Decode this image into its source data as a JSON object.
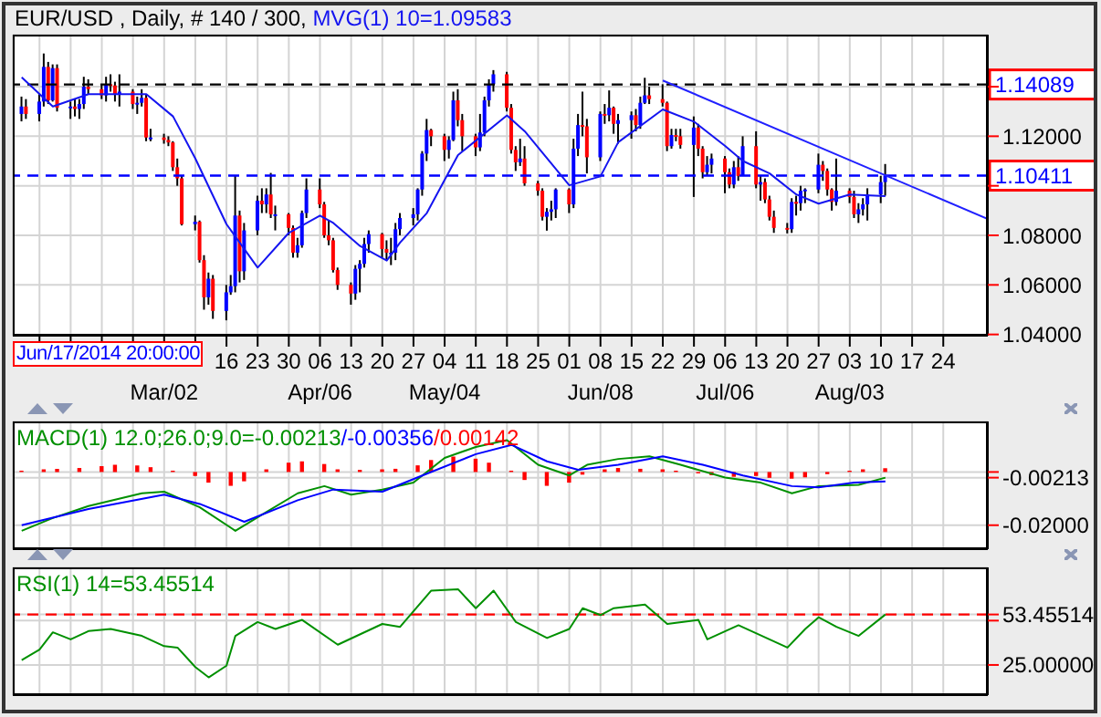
{
  "chart_data": [
    {
      "type": "candlestick",
      "title": "EUR/USD , Daily, # 140 / 300,",
      "color": "#000000",
      "colors": [
        "#0000ff",
        "#ff0000",
        "#0000ff",
        "#0000ff",
        "#ff0000",
        "#0000ff",
        "#ff0000",
        "#0000ff",
        "#ff0000",
        "#0000ff",
        "#0000ff",
        "#ff0000",
        "#ff0000",
        "#0000ff",
        "#ff0000",
        "#ff0000",
        "#0000ff",
        "#ff0000",
        "#0000ff",
        "#0000ff",
        "#ff0000",
        "#0000ff",
        "#ff0000",
        "#ff0000",
        "#ff0000",
        "#ff0000",
        "#ff0000",
        "#0000ff",
        "#ff0000",
        "#ff0000",
        "#0000ff",
        "#ff0000",
        "#0000ff",
        "#0000ff",
        "#0000ff",
        "#ff0000",
        "#0000ff",
        "#0000ff",
        "#ff0000",
        "#0000ff",
        "#ff0000",
        "#0000ff",
        "#ff0000",
        "#ff0000",
        "#0000ff",
        "#0000ff",
        "#0000ff",
        "#ff0000",
        "#ff0000",
        "#ff0000",
        "#ff0000",
        "#ff0000",
        "#ff0000",
        "#0000ff",
        "#0000ff",
        "#0000ff",
        "#0000ff",
        "#ff0000",
        "#ff0000",
        "#0000ff",
        "#0000ff",
        "#0000ff",
        "#0000ff",
        "#0000ff",
        "#0000ff",
        "#0000ff",
        "#ff0000",
        "#ff0000",
        "#0000ff",
        "#0000ff",
        "#ff0000",
        "#ff0000",
        "#ff0000",
        "#0000ff",
        "#0000ff",
        "#0000ff",
        "#0000ff",
        "#ff0000",
        "#ff0000",
        "#ff0000",
        "#0000ff",
        "#ff0000",
        "#ff0000",
        "#ff0000",
        "#0000ff",
        "#0000ff",
        "#0000ff",
        "#ff0000",
        "#0000ff",
        "#0000ff",
        "#ff0000",
        "#ff0000",
        "#0000ff",
        "#ff0000",
        "#0000ff",
        "#ff0000",
        "#0000ff",
        "#0000ff",
        "#ff0000",
        "#0000ff",
        "#0000ff",
        "#ff0000",
        "#ff0000",
        "#ff0000",
        "#0000ff",
        "#ff0000",
        "#ff0000",
        "#0000ff",
        "#ff0000",
        "#ff0000",
        "#0000ff",
        "#0000ff",
        "#ff0000",
        "#ff0000",
        "#0000ff",
        "#ff0000",
        "#0000ff",
        "#ff0000",
        "#0000ff",
        "#ff0000",
        "#ff0000",
        "#ff0000",
        "#ff0000",
        "#0000ff",
        "#ff0000",
        "#0000ff",
        "#0000ff",
        "#0000ff",
        "#ff0000",
        "#ff0000",
        "#ff0000",
        "#0000ff",
        "#ff0000",
        "#ff0000",
        "#0000ff",
        "#0000ff",
        "#0000ff",
        "#0000ff",
        "#0000ff"
      ],
      "x": [
        "--01-29",
        "--01-30",
        "--02-02",
        "--02-03",
        "--02-04",
        "--02-05",
        "--02-06",
        "--02-09",
        "--02-10",
        "--02-11",
        "--02-12",
        "--02-13",
        "--02-16",
        "--02-17",
        "--02-18",
        "--02-19",
        "--02-20",
        "--02-23",
        "--02-24",
        "--02-25",
        "--02-26",
        "--02-27",
        "--03-02",
        "--03-03",
        "--03-04",
        "--03-05",
        "--03-06",
        "--03-09",
        "--03-10",
        "--03-11",
        "--03-12",
        "--03-13",
        "--03-16",
        "--03-17",
        "--03-18",
        "--03-19",
        "--03-20",
        "--03-23",
        "--03-24",
        "--03-25",
        "--03-26",
        "--03-27",
        "--03-30",
        "--03-31",
        "--04-01",
        "--04-02",
        "--04-03",
        "--04-06",
        "--04-07",
        "--04-08",
        "--04-09",
        "--04-10",
        "--04-13",
        "--04-14",
        "--04-15",
        "--04-16",
        "--04-17",
        "--04-20",
        "--04-21",
        "--04-22",
        "--04-23",
        "--04-24",
        "--04-27",
        "--04-28",
        "--04-29",
        "--04-30",
        "--05-01",
        "--05-04",
        "--05-05",
        "--05-06",
        "--05-07",
        "--05-08",
        "--05-11",
        "--05-12",
        "--05-13",
        "--05-14",
        "--05-15",
        "--05-18",
        "--05-19",
        "--05-20",
        "--05-21",
        "--05-22",
        "--05-25",
        "--05-26",
        "--05-27",
        "--05-28",
        "--05-29",
        "--06-01",
        "--06-02",
        "--06-03",
        "--06-04",
        "--06-05",
        "--06-08",
        "--06-09",
        "--06-10",
        "--06-11",
        "--06-12",
        "--06-15",
        "--06-16",
        "--06-17",
        "--06-18",
        "--06-19",
        "--06-22",
        "--06-23",
        "--06-24",
        "--06-25",
        "--06-26",
        "--06-29",
        "--06-30",
        "--07-01",
        "--07-02",
        "--07-03",
        "--07-06",
        "--07-07",
        "--07-08",
        "--07-09",
        "--07-10",
        "--07-13",
        "--07-14",
        "--07-15",
        "--07-16",
        "--07-17",
        "--07-20",
        "--07-21",
        "--07-22",
        "--07-23",
        "--07-24",
        "--07-27",
        "--07-28",
        "--07-29",
        "--07-30",
        "--07-31",
        "--08-03",
        "--08-04",
        "--08-05",
        "--08-06",
        "--08-07",
        "--08-10",
        "--08-11"
      ],
      "ohlc": [
        [
          1.129,
          1.136,
          1.126,
          1.132
        ],
        [
          1.132,
          1.135,
          1.127,
          1.129
        ],
        [
          1.129,
          1.137,
          1.126,
          1.134
        ],
        [
          1.134,
          1.1534,
          1.132,
          1.148
        ],
        [
          1.148,
          1.15,
          1.133,
          1.1345
        ],
        [
          1.1345,
          1.149,
          1.134,
          1.1475
        ],
        [
          1.1475,
          1.149,
          1.13,
          1.1315
        ],
        [
          1.1315,
          1.134,
          1.127,
          1.132
        ],
        [
          1.132,
          1.135,
          1.128,
          1.131
        ],
        [
          1.131,
          1.135,
          1.127,
          1.133
        ],
        [
          1.133,
          1.144,
          1.131,
          1.14
        ],
        [
          1.14,
          1.143,
          1.137,
          1.139
        ],
        [
          1.139,
          1.141,
          1.135,
          1.1365
        ],
        [
          1.1365,
          1.144,
          1.134,
          1.141
        ],
        [
          1.141,
          1.145,
          1.138,
          1.1405
        ],
        [
          1.1405,
          1.142,
          1.134,
          1.137
        ],
        [
          1.137,
          1.145,
          1.132,
          1.138
        ],
        [
          1.138,
          1.139,
          1.131,
          1.133
        ],
        [
          1.133,
          1.136,
          1.129,
          1.1335
        ],
        [
          1.1335,
          1.139,
          1.132,
          1.1355
        ],
        [
          1.1355,
          1.137,
          1.118,
          1.1195
        ],
        [
          1.1195,
          1.123,
          1.118,
          1.1195
        ],
        [
          1.1195,
          1.121,
          1.117,
          1.1185
        ],
        [
          1.1185,
          1.12,
          1.116,
          1.1175
        ],
        [
          1.1175,
          1.118,
          1.106,
          1.1075
        ],
        [
          1.1075,
          1.111,
          1.1,
          1.103
        ],
        [
          1.103,
          1.104,
          1.084,
          1.0845
        ],
        [
          1.0845,
          1.088,
          1.082,
          1.0855
        ],
        [
          1.0855,
          1.086,
          1.069,
          1.07
        ],
        [
          1.07,
          1.072,
          1.05,
          1.055
        ],
        [
          1.055,
          1.065,
          1.052,
          1.0625
        ],
        [
          1.0625,
          1.064,
          1.0463,
          1.0495
        ],
        [
          1.0495,
          1.06,
          1.0457,
          1.057
        ],
        [
          1.057,
          1.064,
          1.056,
          1.0595
        ],
        [
          1.0595,
          1.1043,
          1.057,
          1.088
        ],
        [
          1.088,
          1.09,
          1.061,
          1.0655
        ],
        [
          1.0655,
          1.085,
          1.062,
          1.082
        ],
        [
          1.082,
          1.096,
          1.08,
          1.094
        ],
        [
          1.094,
          1.099,
          1.089,
          1.0925
        ],
        [
          1.0925,
          1.099,
          1.089,
          1.0965
        ],
        [
          1.0965,
          1.1052,
          1.087,
          1.0885
        ],
        [
          1.0885,
          1.092,
          1.082,
          1.0885
        ],
        [
          1.0885,
          1.089,
          1.08,
          1.083
        ],
        [
          1.083,
          1.084,
          1.071,
          1.073
        ],
        [
          1.073,
          1.079,
          1.071,
          1.076
        ],
        [
          1.076,
          1.09,
          1.075,
          1.089
        ],
        [
          1.089,
          1.103,
          1.087,
          1.0985
        ],
        [
          1.0985,
          1.103,
          1.091,
          1.0925
        ],
        [
          1.0925,
          1.0935,
          1.079,
          1.08
        ],
        [
          1.08,
          1.086,
          1.076,
          1.078
        ],
        [
          1.078,
          1.079,
          1.065,
          1.066
        ],
        [
          1.066,
          1.067,
          1.058,
          1.06
        ],
        [
          1.06,
          1.061,
          1.052,
          1.0565
        ],
        [
          1.0565,
          1.068,
          1.054,
          1.0665
        ],
        [
          1.0665,
          1.07,
          1.057,
          1.0685
        ],
        [
          1.0685,
          1.079,
          1.067,
          1.0765
        ],
        [
          1.0765,
          1.082,
          1.073,
          1.0805
        ],
        [
          1.0805,
          1.081,
          1.071,
          1.0745
        ],
        [
          1.0745,
          1.078,
          1.07,
          1.073
        ],
        [
          1.073,
          1.079,
          1.068,
          1.073
        ],
        [
          1.073,
          1.085,
          1.07,
          1.0825
        ],
        [
          1.0825,
          1.089,
          1.08,
          1.087
        ],
        [
          1.087,
          1.091,
          1.084,
          1.0885
        ],
        [
          1.0885,
          1.099,
          1.086,
          1.0985
        ],
        [
          1.0985,
          1.114,
          1.096,
          1.113
        ],
        [
          1.113,
          1.127,
          1.11,
          1.1225
        ],
        [
          1.1225,
          1.123,
          1.116,
          1.12
        ],
        [
          1.12,
          1.121,
          1.11,
          1.1145
        ],
        [
          1.1145,
          1.12,
          1.111,
          1.1185
        ],
        [
          1.1185,
          1.138,
          1.118,
          1.1345
        ],
        [
          1.1345,
          1.139,
          1.124,
          1.1265
        ],
        [
          1.1265,
          1.129,
          1.114,
          1.12
        ],
        [
          1.12,
          1.121,
          1.112,
          1.1155
        ],
        [
          1.1155,
          1.129,
          1.114,
          1.1215
        ],
        [
          1.1215,
          1.136,
          1.12,
          1.1345
        ],
        [
          1.1345,
          1.143,
          1.132,
          1.141
        ],
        [
          1.141,
          1.1467,
          1.138,
          1.145
        ],
        [
          1.145,
          1.146,
          1.13,
          1.1315
        ],
        [
          1.1315,
          1.133,
          1.113,
          1.1145
        ],
        [
          1.1145,
          1.116,
          1.106,
          1.1095
        ],
        [
          1.1095,
          1.119,
          1.108,
          1.111
        ],
        [
          1.111,
          1.116,
          1.1,
          1.101
        ],
        [
          1.101,
          1.102,
          1.096,
          1.098
        ],
        [
          1.098,
          1.099,
          1.086,
          1.0875
        ],
        [
          1.0875,
          1.091,
          1.0819,
          1.0895
        ],
        [
          1.0895,
          1.094,
          1.086,
          1.0905
        ],
        [
          1.0905,
          1.099,
          1.087,
          1.0985
        ],
        [
          1.0985,
          1.099,
          1.089,
          1.0925
        ],
        [
          1.0925,
          1.119,
          1.091,
          1.115
        ],
        [
          1.115,
          1.129,
          1.112,
          1.1245
        ],
        [
          1.1245,
          1.138,
          1.12,
          1.124
        ],
        [
          1.124,
          1.127,
          1.105,
          1.1115
        ],
        [
          1.1115,
          1.13,
          1.11,
          1.129
        ],
        [
          1.129,
          1.133,
          1.125,
          1.1285
        ],
        [
          1.1285,
          1.1385,
          1.126,
          1.1315
        ],
        [
          1.1315,
          1.132,
          1.121,
          1.125
        ],
        [
          1.125,
          1.129,
          1.117,
          1.1265
        ],
        [
          1.1265,
          1.13,
          1.119,
          1.1285
        ],
        [
          1.1285,
          1.131,
          1.122,
          1.1245
        ],
        [
          1.1245,
          1.136,
          1.123,
          1.1335
        ],
        [
          1.1335,
          1.1436,
          1.133,
          1.1365
        ],
        [
          1.1365,
          1.14,
          1.133,
          1.135
        ],
        [
          1.135,
          1.141,
          1.132,
          1.1335
        ],
        [
          1.1335,
          1.134,
          1.114,
          1.116
        ],
        [
          1.116,
          1.123,
          1.115,
          1.1205
        ],
        [
          1.1205,
          1.123,
          1.118,
          1.12
        ],
        [
          1.12,
          1.123,
          1.115,
          1.1165
        ],
        [
          1.1165,
          1.128,
          1.0955,
          1.1235
        ],
        [
          1.1235,
          1.125,
          1.112,
          1.115
        ],
        [
          1.115,
          1.116,
          1.103,
          1.1055
        ],
        [
          1.1055,
          1.112,
          1.104,
          1.1085
        ],
        [
          1.1085,
          1.113,
          1.105,
          1.111
        ],
        [
          1.111,
          1.112,
          1.097,
          1.1055
        ],
        [
          1.1055,
          1.107,
          1.099,
          1.1005
        ],
        [
          1.1005,
          1.11,
          1.099,
          1.1075
        ],
        [
          1.1075,
          1.112,
          1.102,
          1.104
        ],
        [
          1.104,
          1.12,
          1.104,
          1.116
        ],
        [
          1.116,
          1.122,
          1.099,
          1.1005
        ],
        [
          1.1005,
          1.104,
          1.094,
          1.1015
        ],
        [
          1.1015,
          1.103,
          1.093,
          1.0945
        ],
        [
          1.0945,
          1.096,
          1.086,
          1.0875
        ],
        [
          1.0875,
          1.09,
          1.081,
          1.083
        ],
        [
          1.083,
          1.085,
          1.0808,
          1.0825
        ],
        [
          1.0825,
          1.095,
          1.081,
          1.0935
        ],
        [
          1.0935,
          1.096,
          1.088,
          1.093
        ],
        [
          1.093,
          1.1,
          1.09,
          1.098
        ],
        [
          1.098,
          1.099,
          1.093,
          1.0985
        ],
        [
          1.0985,
          1.113,
          1.097,
          1.1085
        ],
        [
          1.1085,
          1.11,
          1.102,
          1.106
        ],
        [
          1.106,
          1.107,
          1.096,
          1.0985
        ],
        [
          1.0985,
          1.099,
          1.09,
          1.0935
        ],
        [
          1.0935,
          1.111,
          1.092,
          1.098
        ],
        [
          1.098,
          1.099,
          1.093,
          1.0955
        ],
        [
          1.0955,
          1.098,
          1.087,
          1.0885
        ],
        [
          1.0885,
          1.093,
          1.085,
          1.0905
        ],
        [
          1.0905,
          1.095,
          1.088,
          1.0925
        ],
        [
          1.0925,
          1.099,
          1.086,
          1.0965
        ],
        [
          1.0965,
          1.104,
          1.093,
          1.1015
        ],
        [
          1.1015,
          1.1088,
          1.096,
          1.10411
        ]
      ],
      "series": [
        {
          "type": "line",
          "name": "MVG(1) 10=1.09583",
          "color": "#1414f0",
          "x": [
            "--01-29",
            "--02-05",
            "--02-13",
            "--02-26",
            "--03-04",
            "--03-09",
            "--03-16",
            "--03-23",
            "--03-30",
            "--04-06",
            "--04-09",
            "--04-15",
            "--04-21",
            "--04-24",
            "--04-30",
            "--05-07",
            "--05-18",
            "--05-22",
            "--06-01",
            "--06-08",
            "--06-12",
            "--06-22",
            "--06-29",
            "--07-06",
            "--07-10",
            "--07-16",
            "--07-22",
            "--07-27",
            "--08-03",
            "--08-11"
          ],
          "values": [
            1.1438,
            1.132,
            1.137,
            1.137,
            1.128,
            1.111,
            1.0845,
            1.067,
            1.081,
            1.088,
            1.085,
            1.0757,
            1.0698,
            1.0771,
            1.089,
            1.1124,
            1.1284,
            1.122,
            1.1002,
            1.1038,
            1.1176,
            1.1308,
            1.1259,
            1.1161,
            1.11,
            1.105,
            1.0965,
            1.0928,
            1.0965,
            1.09583
          ]
        },
        {
          "type": "line",
          "color": "#2020ff",
          "x": [
            "--06-22",
            "--09-03"
          ],
          "values": [
            1.1425,
            1.0866
          ]
        }
      ],
      "ref_lines": [
        {
          "axis": "y",
          "value": 1.14089,
          "label": "1.14089",
          "color": "#000000",
          "line_style": "dashed"
        },
        {
          "axis": "y",
          "value": 1.10411,
          "label": "1.10411",
          "color": "#0000ff",
          "line_style": "dashed"
        }
      ],
      "annotations": [
        "Jun/17/2014 20:00:00"
      ],
      "xlim": [
        "--01-27",
        "--09-03"
      ],
      "ylim": [
        1.0395,
        1.161
      ],
      "xticks": [
        {
          "value": "--02-02",
          "label": null
        },
        {
          "value": "--02-09",
          "label": null
        },
        {
          "value": "--02-16",
          "label": null
        },
        {
          "value": "--02-23",
          "label": null
        },
        {
          "value": "--03-02",
          "label": null
        },
        {
          "value": "--03-09",
          "label": null
        },
        {
          "value": "--03-16",
          "label": "16"
        },
        {
          "value": "--03-23",
          "label": "23"
        },
        {
          "value": "--03-30",
          "label": "30"
        },
        {
          "value": "--04-06",
          "label": "06"
        },
        {
          "value": "--04-13",
          "label": "13"
        },
        {
          "value": "--04-20",
          "label": "20"
        },
        {
          "value": "--04-27",
          "label": "27"
        },
        {
          "value": "--05-04",
          "label": "04"
        },
        {
          "value": "--05-11",
          "label": "11"
        },
        {
          "value": "--05-18",
          "label": "18"
        },
        {
          "value": "--05-25",
          "label": "25"
        },
        {
          "value": "--06-01",
          "label": "01"
        },
        {
          "value": "--06-08",
          "label": "08"
        },
        {
          "value": "--06-15",
          "label": "15"
        },
        {
          "value": "--06-22",
          "label": "22"
        },
        {
          "value": "--06-29",
          "label": "29"
        },
        {
          "value": "--07-06",
          "label": "06"
        },
        {
          "value": "--07-13",
          "label": "13"
        },
        {
          "value": "--07-20",
          "label": "20"
        },
        {
          "value": "--07-27",
          "label": "27"
        },
        {
          "value": "--08-03",
          "label": "03"
        },
        {
          "value": "--08-10",
          "label": "10"
        },
        {
          "value": "--08-17",
          "label": "17"
        },
        {
          "value": "--08-24",
          "label": "24"
        }
      ],
      "x2lim": [
        "--01-27",
        "--09-03"
      ],
      "x2ticks": [
        {
          "value": "--03-02",
          "label": "Mar/02"
        },
        {
          "value": "--04-06",
          "label": "Apr/06"
        },
        {
          "value": "--05-04",
          "label": "May/04"
        },
        {
          "value": "--06-08",
          "label": "Jun/08"
        },
        {
          "value": "--07-06",
          "label": "Jul/06"
        },
        {
          "value": "--08-03",
          "label": "Aug/03"
        }
      ],
      "yticks": [
        {
          "value": 1.04,
          "label": "1.04000"
        },
        {
          "value": 1.06,
          "label": "1.06000"
        },
        {
          "value": 1.08,
          "label": "1.08000"
        },
        {
          "value": 1.1,
          "label": null
        },
        {
          "value": 1.12,
          "label": "1.12000"
        },
        {
          "value": 1.14,
          "label": null
        }
      ],
      "grid": true
    },
    {
      "type": "line",
      "series": [
        {
          "type": "line",
          "name": "MACD(1) 12.0;26.0;9.0=-0.00213",
          "color": "#009000",
          "x": [
            "--01-29",
            "--02-05",
            "--02-13",
            "--02-25",
            "--03-02",
            "--03-10",
            "--03-18",
            "--03-24",
            "--04-01",
            "--04-07",
            "--04-13",
            "--04-20",
            "--04-27",
            "--05-04",
            "--05-11",
            "--05-18",
            "--05-25",
            "--06-01",
            "--06-05",
            "--06-12",
            "--06-19",
            "--06-26",
            "--07-06",
            "--07-14",
            "--07-21",
            "--07-27",
            "--08-05",
            "--08-11"
          ],
          "values": [
            -0.0221,
            -0.0173,
            -0.0128,
            -0.008,
            -0.0074,
            -0.0133,
            -0.0221,
            -0.016,
            -0.008,
            -0.0053,
            -0.0085,
            -0.0066,
            -0.004,
            0.0053,
            0.0094,
            0.012,
            0.0027,
            -0.0013,
            0.0027,
            0.0049,
            0.0059,
            0.0027,
            -0.0021,
            -0.004,
            -0.008,
            -0.0053,
            -0.0048,
            -0.00213
          ]
        },
        {
          "type": "line",
          "name": "/-0.00356",
          "color": "#0000ff",
          "x": [
            "--01-29",
            "--02-13",
            "--03-02",
            "--03-10",
            "--03-20",
            "--04-01",
            "--04-09",
            "--04-20",
            "--04-29",
            "--05-11",
            "--05-19",
            "--05-27",
            "--06-03",
            "--06-12",
            "--06-22",
            "--07-01",
            "--07-10",
            "--07-21",
            "--07-27",
            "--08-04",
            "--08-11"
          ],
          "values": [
            -0.02,
            -0.0139,
            -0.0085,
            -0.012,
            -0.0187,
            -0.0106,
            -0.0066,
            -0.0074,
            -0.0013,
            0.0067,
            0.0102,
            0.004,
            0.0008,
            0.0027,
            0.0059,
            0.0027,
            -0.0013,
            -0.0053,
            -0.0058,
            -0.004,
            -0.00356
          ]
        },
        {
          "type": "bar",
          "name": "/0.00142",
          "color": "#ff0000",
          "x": [
            "--01-29",
            "--02-03",
            "--02-06",
            "--02-11",
            "--02-16",
            "--02-19",
            "--02-24",
            "--02-27",
            "--03-04",
            "--03-09",
            "--03-12",
            "--03-17",
            "--03-20",
            "--03-25",
            "--03-30",
            "--04-02",
            "--04-07",
            "--04-10",
            "--04-15",
            "--04-20",
            "--04-23",
            "--04-28",
            "--05-01",
            "--05-06",
            "--05-11",
            "--05-14",
            "--05-19",
            "--05-22",
            "--05-27",
            "--06-01",
            "--06-04",
            "--06-09",
            "--06-12",
            "--06-17",
            "--06-22",
            "--06-25",
            "--06-30",
            "--07-03",
            "--07-08",
            "--07-13",
            "--07-16",
            "--07-21",
            "--07-24",
            "--07-29",
            "--08-03",
            "--08-06",
            "--08-11"
          ],
          "values": [
            0.0005,
            0.001,
            0.0012,
            0.0015,
            0.0022,
            0.0027,
            0.0025,
            0.0018,
            0.0005,
            -0.0015,
            -0.004,
            -0.0052,
            -0.0035,
            0.001,
            0.0035,
            0.004,
            0.003,
            0.001,
            0.0008,
            0.001,
            0.0012,
            0.0025,
            0.0045,
            0.0058,
            0.005,
            0.0035,
            0.0005,
            -0.003,
            -0.0052,
            -0.004,
            -0.001,
            0.001,
            0.0015,
            0.0012,
            0.001,
            0.0005,
            -0.0005,
            -0.0012,
            -0.0018,
            -0.0015,
            -0.0022,
            -0.0025,
            -0.002,
            -0.0008,
            0.0005,
            0.001,
            0.00142
          ]
        }
      ],
      "xlim": [
        "--01-27",
        "--09-03"
      ],
      "ylim": [
        -0.029,
        0.019
      ],
      "xticks": [
        {
          "value": "--02-02",
          "label": null
        },
        {
          "value": "--02-09",
          "label": null
        },
        {
          "value": "--02-16",
          "label": null
        },
        {
          "value": "--02-23",
          "label": null
        },
        {
          "value": "--03-02",
          "label": null
        },
        {
          "value": "--03-09",
          "label": null
        },
        {
          "value": "--03-16",
          "label": null
        },
        {
          "value": "--03-23",
          "label": null
        },
        {
          "value": "--03-30",
          "label": null
        },
        {
          "value": "--04-06",
          "label": null
        },
        {
          "value": "--04-13",
          "label": null
        },
        {
          "value": "--04-20",
          "label": null
        },
        {
          "value": "--04-27",
          "label": null
        },
        {
          "value": "--05-04",
          "label": null
        },
        {
          "value": "--05-11",
          "label": null
        },
        {
          "value": "--05-18",
          "label": null
        },
        {
          "value": "--05-25",
          "label": null
        },
        {
          "value": "--06-01",
          "label": null
        },
        {
          "value": "--06-08",
          "label": null
        },
        {
          "value": "--06-15",
          "label": null
        },
        {
          "value": "--06-22",
          "label": null
        },
        {
          "value": "--06-29",
          "label": null
        },
        {
          "value": "--07-06",
          "label": null
        },
        {
          "value": "--07-13",
          "label": null
        },
        {
          "value": "--07-20",
          "label": null
        },
        {
          "value": "--07-27",
          "label": null
        },
        {
          "value": "--08-03",
          "label": null
        },
        {
          "value": "--08-10",
          "label": null
        },
        {
          "value": "--08-17",
          "label": null
        },
        {
          "value": "--08-24",
          "label": null
        }
      ],
      "yticks": [
        {
          "value": -0.02,
          "label": "-0.02000"
        },
        {
          "value": -0.00213,
          "label": "-0.00213"
        },
        {
          "value": 0,
          "label": null
        }
      ],
      "tick_labels": "y",
      "grid": true
    },
    {
      "type": "line",
      "series": [
        {
          "name": "RSI(1) 14=53.45514",
          "color": "#009000",
          "x": [
            "--01-29",
            "--02-02",
            "--02-05",
            "--02-09",
            "--02-13",
            "--02-18",
            "--02-25",
            "--03-02",
            "--03-05",
            "--03-09",
            "--03-12",
            "--03-16",
            "--03-18",
            "--03-23",
            "--03-27",
            "--04-02",
            "--04-10",
            "--04-20",
            "--04-24",
            "--05-01",
            "--05-07",
            "--05-11",
            "--05-15",
            "--05-20",
            "--05-27",
            "--06-01",
            "--06-04",
            "--06-08",
            "--06-11",
            "--06-18",
            "--06-23",
            "--06-30",
            "--07-02",
            "--07-09",
            "--07-20",
            "--07-24",
            "--07-27",
            "--07-31",
            "--08-05",
            "--08-11"
          ],
          "values": [
            27.7,
            33.6,
            43.4,
            39.4,
            44.1,
            45.3,
            41.4,
            35.6,
            34.8,
            23.8,
            18,
            24.6,
            41.4,
            49.2,
            45.3,
            50.4,
            36.4,
            48.1,
            46.5,
            66.9,
            67.7,
            57,
            66.9,
            49.2,
            40.2,
            45.3,
            57,
            53.1,
            57,
            59,
            48.1,
            50.4,
            39.4,
            47.4,
            34.8,
            45.3,
            51.9,
            46.5,
            41.4,
            53.45514
          ]
        }
      ],
      "ref_lines": [
        {
          "axis": "y",
          "value": 53.45514,
          "color": "#ff0000",
          "line_style": "dashed"
        }
      ],
      "xlim": [
        "--01-27",
        "--09-03"
      ],
      "ylim": [
        8,
        80
      ],
      "xticks": [
        {
          "value": "--02-02",
          "label": null
        },
        {
          "value": "--02-09",
          "label": null
        },
        {
          "value": "--02-16",
          "label": null
        },
        {
          "value": "--02-23",
          "label": null
        },
        {
          "value": "--03-02",
          "label": null
        },
        {
          "value": "--03-09",
          "label": null
        },
        {
          "value": "--03-16",
          "label": null
        },
        {
          "value": "--03-23",
          "label": null
        },
        {
          "value": "--03-30",
          "label": null
        },
        {
          "value": "--04-06",
          "label": null
        },
        {
          "value": "--04-13",
          "label": null
        },
        {
          "value": "--04-20",
          "label": null
        },
        {
          "value": "--04-27",
          "label": null
        },
        {
          "value": "--05-04",
          "label": null
        },
        {
          "value": "--05-11",
          "label": null
        },
        {
          "value": "--05-18",
          "label": null
        },
        {
          "value": "--05-25",
          "label": null
        },
        {
          "value": "--06-01",
          "label": null
        },
        {
          "value": "--06-08",
          "label": null
        },
        {
          "value": "--06-15",
          "label": null
        },
        {
          "value": "--06-22",
          "label": null
        },
        {
          "value": "--06-29",
          "label": null
        },
        {
          "value": "--07-06",
          "label": null
        },
        {
          "value": "--07-13",
          "label": null
        },
        {
          "value": "--07-20",
          "label": null
        },
        {
          "value": "--07-27",
          "label": null
        },
        {
          "value": "--08-03",
          "label": null
        },
        {
          "value": "--08-10",
          "label": null
        },
        {
          "value": "--08-17",
          "label": null
        },
        {
          "value": "--08-24",
          "label": null
        }
      ],
      "yticks": [
        {
          "value": 25,
          "label": "25.00000"
        },
        {
          "value": 50,
          "label": null
        },
        {
          "value": 53.45514,
          "label": "53.45514"
        }
      ],
      "tick_labels": "y",
      "grid": true
    }
  ]
}
